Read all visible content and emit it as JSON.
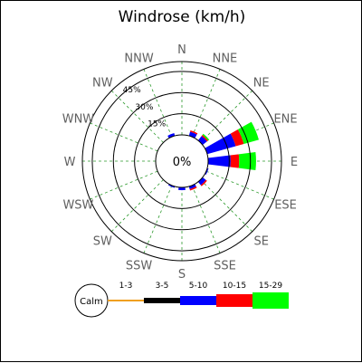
{
  "chart_data": {
    "type": "windrose",
    "title": "Windrose (km/h)",
    "directions": [
      "N",
      "NNE",
      "NE",
      "ENE",
      "E",
      "ESE",
      "SE",
      "SSE",
      "S",
      "SSW",
      "SW",
      "WSW",
      "W",
      "WNW",
      "NW",
      "NNW"
    ],
    "rings": [
      {
        "value": 15,
        "label": "15%"
      },
      {
        "value": 30,
        "label": "30%"
      },
      {
        "value": 45,
        "label": "45%"
      }
    ],
    "rmax": 52,
    "calm": {
      "value": 0,
      "label": "0%"
    },
    "grid": true,
    "legend_position": "bottom",
    "legend_calm_label": "Calm",
    "speed_bins": [
      {
        "label": "1-3",
        "color": "#f0a020"
      },
      {
        "label": "3-5",
        "color": "#000000"
      },
      {
        "label": "5-10",
        "color": "#0000ff"
      },
      {
        "label": "10-15",
        "color": "#ff0000"
      },
      {
        "label": "15-29",
        "color": "#00ff00"
      }
    ],
    "series": [
      {
        "direction": "N",
        "values": [
          0,
          0,
          0,
          0,
          0
        ]
      },
      {
        "direction": "NNE",
        "values": [
          0,
          0,
          3,
          1,
          0
        ]
      },
      {
        "direction": "NE",
        "values": [
          0,
          0,
          4,
          1,
          1
        ]
      },
      {
        "direction": "ENE",
        "values": [
          0,
          0,
          21,
          6,
          11
        ]
      },
      {
        "direction": "E",
        "values": [
          0,
          0,
          16,
          6,
          12
        ]
      },
      {
        "direction": "ESE",
        "values": [
          0,
          0,
          1,
          0,
          0
        ]
      },
      {
        "direction": "SE",
        "values": [
          0,
          0,
          3,
          1,
          0
        ]
      },
      {
        "direction": "SSE",
        "values": [
          0,
          0,
          2,
          1,
          0
        ]
      },
      {
        "direction": "S",
        "values": [
          0,
          0,
          2,
          0,
          0
        ]
      },
      {
        "direction": "SSW",
        "values": [
          0,
          0,
          1,
          0,
          0
        ]
      },
      {
        "direction": "SW",
        "values": [
          0,
          0,
          0,
          0,
          0
        ]
      },
      {
        "direction": "WSW",
        "values": [
          0,
          0,
          0,
          0,
          0
        ]
      },
      {
        "direction": "W",
        "values": [
          0,
          0,
          0,
          0,
          0
        ]
      },
      {
        "direction": "WNW",
        "values": [
          0,
          0,
          0,
          0,
          0
        ]
      },
      {
        "direction": "NW",
        "values": [
          0,
          0,
          0,
          0,
          0
        ]
      },
      {
        "direction": "NNW",
        "values": [
          0,
          0,
          2,
          0,
          0
        ]
      }
    ]
  }
}
